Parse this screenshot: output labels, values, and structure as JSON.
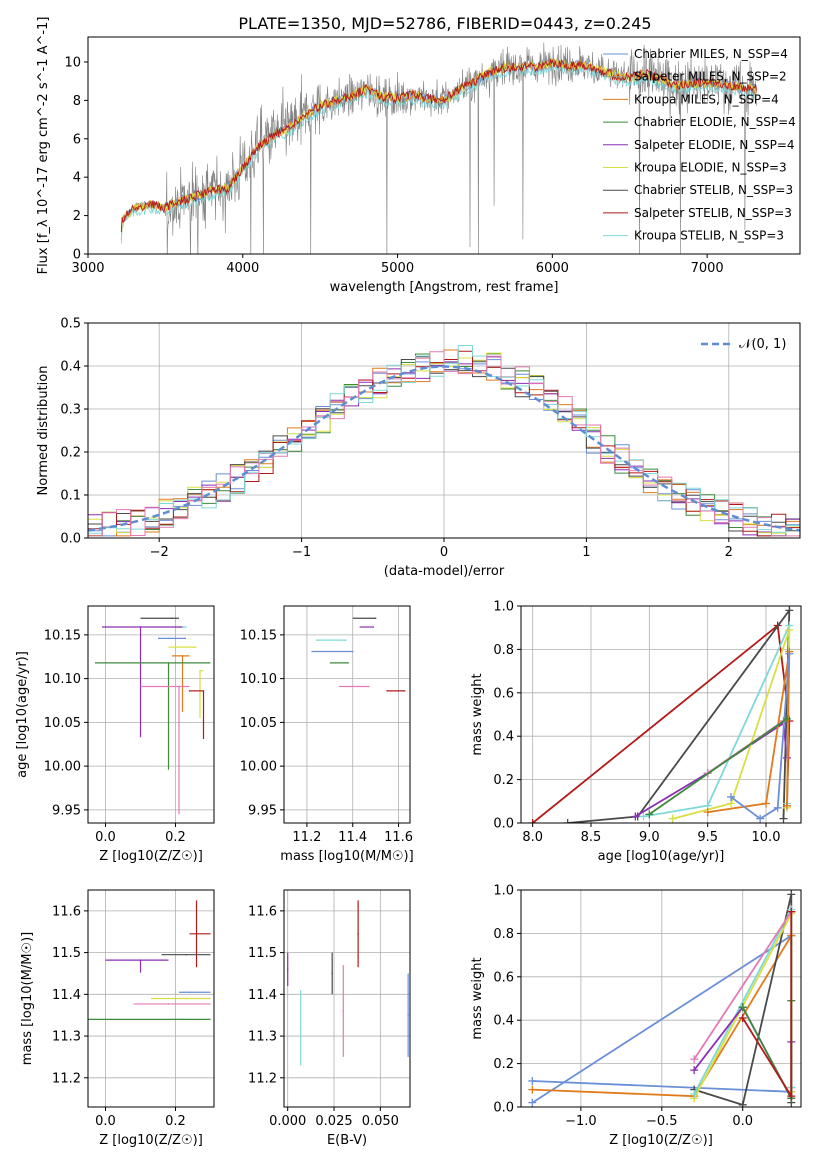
{
  "figure_title": "PLATE=1350, MJD=52786, FIBERID=0443, z=0.245",
  "palette": {
    "chabrier_miles": "#6a8fd8",
    "salpeter_miles": "#9a9a9a",
    "kroupa_miles": "#e07b1c",
    "chabrier_elodie": "#3d8a3d",
    "salpeter_elodie": "#8b2fb5",
    "kroupa_elodie": "#d8df42",
    "chabrier_stelib": "#4a4a4a",
    "salpeter_stelib": "#b21a1a",
    "kroupa_stelib": "#7fd8d8",
    "pink": "#e37ab3",
    "data": "#808080",
    "normal": "#5f8dd3"
  },
  "chart_data": [
    {
      "id": "spectrum",
      "type": "line",
      "title": "PLATE=1350, MJD=52786, FIBERID=0443, z=0.245",
      "xlabel": "wavelength [Angstrom, rest frame]",
      "ylabel": "Flux [f_λ 10^-17 erg cm^-2 s^-1 A^-1]",
      "xlim": [
        3000,
        7600
      ],
      "ylim": [
        0,
        11.3
      ],
      "xticks": [
        "3000",
        "4000",
        "5000",
        "6000",
        "7000"
      ],
      "yticks": [
        "0",
        "2",
        "4",
        "6",
        "8",
        "10"
      ],
      "legend_position": "right",
      "series": [
        {
          "name": "Chabrier MILES, N_SSP=4",
          "color_key": "chabrier_miles"
        },
        {
          "name": "Salpeter MILES, N_SSP=2",
          "color_key": "salpeter_miles"
        },
        {
          "name": "Kroupa MILES, N_SSP=4",
          "color_key": "kroupa_miles"
        },
        {
          "name": "Chabrier ELODIE, N_SSP=4",
          "color_key": "chabrier_elodie"
        },
        {
          "name": "Salpeter ELODIE, N_SSP=4",
          "color_key": "salpeter_elodie"
        },
        {
          "name": "Kroupa ELODIE, N_SSP=3",
          "color_key": "kroupa_elodie"
        },
        {
          "name": "Chabrier STELIB, N_SSP=3",
          "color_key": "chabrier_stelib"
        },
        {
          "name": "Salpeter STELIB, N_SSP=3",
          "color_key": "salpeter_stelib"
        },
        {
          "name": "Kroupa STELIB, N_SSP=3",
          "color_key": "kroupa_stelib"
        }
      ],
      "continuum": [
        [
          3210,
          0
        ],
        [
          3220,
          1.8
        ],
        [
          3300,
          2.4
        ],
        [
          3400,
          2.6
        ],
        [
          3500,
          2.4
        ],
        [
          3600,
          2.8
        ],
        [
          3700,
          3.0
        ],
        [
          3800,
          3.3
        ],
        [
          3900,
          3.4
        ],
        [
          4000,
          4.5
        ],
        [
          4100,
          5.6
        ],
        [
          4200,
          6.2
        ],
        [
          4300,
          6.6
        ],
        [
          4400,
          7.2
        ],
        [
          4500,
          7.7
        ],
        [
          4600,
          8.0
        ],
        [
          4700,
          8.2
        ],
        [
          4800,
          8.6
        ],
        [
          4900,
          8.2
        ],
        [
          5000,
          8.1
        ],
        [
          5100,
          8.3
        ],
        [
          5200,
          8.1
        ],
        [
          5300,
          8.0
        ],
        [
          5400,
          8.6
        ],
        [
          5500,
          9.0
        ],
        [
          5600,
          9.5
        ],
        [
          5700,
          9.7
        ],
        [
          5800,
          9.8
        ],
        [
          5900,
          9.7
        ],
        [
          6000,
          10.0
        ],
        [
          6100,
          9.8
        ],
        [
          6200,
          9.9
        ],
        [
          6300,
          9.6
        ],
        [
          6400,
          9.3
        ],
        [
          6500,
          9.2
        ],
        [
          6600,
          9.4
        ],
        [
          6700,
          9.1
        ],
        [
          6800,
          8.8
        ],
        [
          6900,
          8.9
        ],
        [
          7000,
          8.9
        ],
        [
          7100,
          8.9
        ],
        [
          7200,
          8.7
        ],
        [
          7300,
          8.6
        ]
      ]
    },
    {
      "id": "residuals",
      "type": "area",
      "xlabel": "(data-model)/error",
      "ylabel": "Normed distribution",
      "xlim": [
        -2.5,
        2.5
      ],
      "ylim": [
        0,
        0.5
      ],
      "xticks": [
        "−2",
        "−1",
        "0",
        "1",
        "2"
      ],
      "yticks": [
        "0.0",
        "0.1",
        "0.2",
        "0.3",
        "0.4",
        "0.5"
      ],
      "legend": "𝒩(0, 1)",
      "legend_position": "top-right",
      "bin_width": 0.1,
      "histogram_centers": [
        -2.45,
        -2.35,
        -2.25,
        -2.15,
        -2.05,
        -1.95,
        -1.85,
        -1.75,
        -1.65,
        -1.55,
        -1.45,
        -1.35,
        -1.25,
        -1.15,
        -1.05,
        -0.95,
        -0.85,
        -0.75,
        -0.65,
        -0.55,
        -0.45,
        -0.35,
        -0.25,
        -0.15,
        -0.05,
        0.05,
        0.15,
        0.25,
        0.35,
        0.45,
        0.55,
        0.65,
        0.75,
        0.85,
        0.95,
        1.05,
        1.15,
        1.25,
        1.35,
        1.45,
        1.55,
        1.65,
        1.75,
        1.85,
        1.95,
        2.05,
        2.15,
        2.25,
        2.35,
        2.45
      ]
    },
    {
      "id": "age_vs_Z",
      "type": "scatter",
      "xlabel": "Z [log10(Z/Z☉)]",
      "ylabel": "age  [log10(age/yr)]",
      "xlim": [
        -0.05,
        0.31
      ],
      "ylim": [
        9.935,
        10.183
      ],
      "xticks": [
        "0.0",
        "0.2"
      ],
      "yticks": [
        "9.95",
        "10.00",
        "10.05",
        "10.10",
        "10.15"
      ],
      "points": [
        {
          "x": 0.19,
          "y": 10.169,
          "xerr": [
            0.09,
            0.02
          ],
          "yerr": [
            0.0,
            0.0
          ],
          "color_key": "chabrier_stelib"
        },
        {
          "x": 0.23,
          "y": 10.159,
          "xerr": [
            0.04,
            0.0
          ],
          "yerr": [
            0.0,
            0.0
          ],
          "color_key": "kroupa_stelib"
        },
        {
          "x": 0.18,
          "y": 10.146,
          "xerr": [
            0.03,
            0.05
          ],
          "yerr": [
            0.0,
            0.0
          ],
          "color_key": "chabrier_miles"
        },
        {
          "x": 0.1,
          "y": 10.159,
          "xerr": [
            0.11,
            0.12
          ],
          "yerr": [
            0.126,
            0.0
          ],
          "color_key": "salpeter_elodie"
        },
        {
          "x": 0.2,
          "y": 10.136,
          "xerr": [
            0.02,
            0.06
          ],
          "yerr": [
            0.0,
            0.0
          ],
          "color_key": "kroupa_elodie"
        },
        {
          "x": 0.22,
          "y": 10.126,
          "xerr": [
            0.03,
            0.02
          ],
          "yerr": [
            0.064,
            0.0
          ],
          "color_key": "kroupa_miles"
        },
        {
          "x": 0.18,
          "y": 10.118,
          "xerr": [
            0.21,
            0.12
          ],
          "yerr": [
            0.122,
            0.0
          ],
          "color_key": "chabrier_elodie"
        },
        {
          "x": 0.27,
          "y": 10.109,
          "xerr": [
            0.0,
            0.01
          ],
          "yerr": [
            0.054,
            0.0
          ],
          "color_key": "kroupa_elodie"
        },
        {
          "x": 0.21,
          "y": 10.091,
          "xerr": [
            0.11,
            0.03
          ],
          "yerr": [
            0.146,
            0.0
          ],
          "color_key": "pink"
        },
        {
          "x": 0.24,
          "y": 10.086,
          "xerr": [
            0.0,
            0.04
          ],
          "yerr": [
            0.0,
            0.0
          ],
          "color_key": "salpeter_stelib"
        },
        {
          "x": 0.28,
          "y": 10.086,
          "xerr": [
            0.0,
            0.0
          ],
          "yerr": [
            0.055,
            0.0
          ],
          "color_key": "salpeter_stelib"
        }
      ]
    },
    {
      "id": "age_vs_mass",
      "type": "scatter",
      "xlabel": "mass [log10(M/M☉)]",
      "ylabel": "",
      "xlim": [
        11.1,
        11.65
      ],
      "ylim": [
        9.935,
        10.183
      ],
      "xticks": [
        "11.2",
        "11.4",
        "11.6"
      ],
      "yticks": [
        "9.95",
        "10.00",
        "10.05",
        "10.10",
        "10.15"
      ],
      "points": [
        {
          "x": 11.5,
          "y": 10.169,
          "xerr": [
            0.1,
            0.0
          ],
          "yerr": [
            0.0,
            0.0
          ],
          "color_key": "chabrier_stelib"
        },
        {
          "x": 11.49,
          "y": 10.159,
          "xerr": [
            0.06,
            0.0
          ],
          "yerr": [
            0.0,
            0.0
          ],
          "color_key": "salpeter_elodie"
        },
        {
          "x": 11.37,
          "y": 10.144,
          "xerr": [
            0.13,
            0.0
          ],
          "yerr": [
            0.0,
            0.0
          ],
          "color_key": "kroupa_stelib"
        },
        {
          "x": 11.4,
          "y": 10.131,
          "xerr": [
            0.18,
            0.0
          ],
          "yerr": [
            0.0,
            0.0
          ],
          "color_key": "chabrier_miles"
        },
        {
          "x": 11.38,
          "y": 10.118,
          "xerr": [
            0.08,
            0.0
          ],
          "yerr": [
            0.0,
            0.0
          ],
          "color_key": "chabrier_elodie"
        },
        {
          "x": 11.47,
          "y": 10.091,
          "xerr": [
            0.13,
            0.0
          ],
          "yerr": [
            0.0,
            0.0
          ],
          "color_key": "pink"
        },
        {
          "x": 11.55,
          "y": 10.086,
          "xerr": [
            0.0,
            0.08
          ],
          "yerr": [
            0.0,
            0.0
          ],
          "color_key": "salpeter_stelib"
        }
      ]
    },
    {
      "id": "weight_vs_age",
      "type": "line",
      "xlabel": "age  [log10(age/yr)]",
      "ylabel": "mass weight",
      "xlim": [
        7.9,
        10.3
      ],
      "ylim": [
        0,
        1
      ],
      "xticks": [
        "8.0",
        "8.5",
        "9.0",
        "9.5",
        "10.0"
      ],
      "yticks": [
        "0.0",
        "0.2",
        "0.4",
        "0.6",
        "0.8",
        "1.0"
      ],
      "series": [
        {
          "color_key": "salpeter_stelib",
          "x": [
            8.0,
            10.1,
            10.2,
            10.18
          ],
          "y": [
            0.0,
            0.91,
            0.47,
            0.08
          ]
        },
        {
          "color_key": "chabrier_stelib",
          "x": [
            8.3,
            8.9,
            10.2,
            10.15
          ],
          "y": [
            0.0,
            0.03,
            0.98,
            0.02
          ]
        },
        {
          "color_key": "salpeter_elodie",
          "x": [
            8.88,
            9.5,
            10.15,
            10.18
          ],
          "y": [
            0.03,
            0.23,
            0.46,
            0.3
          ]
        },
        {
          "color_key": "kroupa_stelib",
          "x": [
            8.95,
            9.5,
            10.2,
            10.18
          ],
          "y": [
            0.03,
            0.08,
            0.91,
            0.09
          ]
        },
        {
          "color_key": "kroupa_elodie",
          "x": [
            9.2,
            9.7,
            10.2,
            10.18
          ],
          "y": [
            0.02,
            0.09,
            0.89,
            0.07
          ]
        },
        {
          "color_key": "kroupa_miles",
          "x": [
            9.5,
            10.0,
            10.2,
            10.18
          ],
          "y": [
            0.05,
            0.09,
            0.79,
            0.08
          ]
        },
        {
          "color_key": "chabrier_miles",
          "x": [
            9.7,
            9.95,
            10.1,
            10.2
          ],
          "y": [
            0.12,
            0.02,
            0.07,
            0.78
          ]
        },
        {
          "color_key": "pink",
          "x": [
            9.5,
            10.15
          ],
          "y": [
            0.23,
            0.47
          ]
        },
        {
          "color_key": "chabrier_elodie",
          "x": [
            9.0,
            10.18
          ],
          "y": [
            0.04,
            0.48
          ]
        }
      ]
    },
    {
      "id": "mass_vs_Z",
      "type": "scatter",
      "xlabel": "Z [log10(Z/Z☉)]",
      "ylabel": "mass [log10(M/M☉)]",
      "xlim": [
        -0.05,
        0.31
      ],
      "ylim": [
        11.13,
        11.65
      ],
      "xticks": [
        "0.0",
        "0.2"
      ],
      "yticks": [
        "11.2",
        "11.3",
        "11.4",
        "11.5",
        "11.6"
      ],
      "points": [
        {
          "x": 0.26,
          "y": 11.545,
          "xerr": [
            0.02,
            0.04
          ],
          "yerr": [
            0.08,
            0.08
          ],
          "color_key": "salpeter_stelib"
        },
        {
          "x": 0.23,
          "y": 11.495,
          "xerr": [
            0.07,
            0.07
          ],
          "yerr": [
            0.0,
            0.0
          ],
          "color_key": "chabrier_stelib"
        },
        {
          "x": 0.1,
          "y": 11.482,
          "xerr": [
            0.1,
            0.08
          ],
          "yerr": [
            0.03,
            0.0
          ],
          "color_key": "salpeter_elodie"
        },
        {
          "x": 0.24,
          "y": 11.405,
          "xerr": [
            0.03,
            0.06
          ],
          "yerr": [
            0.0,
            0.0
          ],
          "color_key": "chabrier_miles"
        },
        {
          "x": 0.23,
          "y": 11.39,
          "xerr": [
            0.1,
            0.07
          ],
          "yerr": [
            0.0,
            0.0
          ],
          "color_key": "kroupa_elodie"
        },
        {
          "x": 0.18,
          "y": 11.377,
          "xerr": [
            0.1,
            0.12
          ],
          "yerr": [
            0.0,
            0.0
          ],
          "color_key": "pink"
        },
        {
          "x": 0.22,
          "y": 11.34,
          "xerr": [
            0.27,
            0.08
          ],
          "yerr": [
            0.0,
            0.0
          ],
          "color_key": "chabrier_elodie"
        }
      ]
    },
    {
      "id": "mass_vs_ebv",
      "type": "scatter",
      "xlabel": "E(B-V)",
      "ylabel": "",
      "xlim": [
        -0.002,
        0.066
      ],
      "ylim": [
        11.13,
        11.65
      ],
      "xticks": [
        "0.000",
        "0.025",
        "0.050"
      ],
      "yticks": [
        "11.2",
        "11.3",
        "11.4",
        "11.5",
        "11.6"
      ],
      "points": [
        {
          "x": 0.038,
          "y": 11.545,
          "xerr": [
            0.0,
            0.0
          ],
          "yerr": [
            0.08,
            0.08
          ],
          "color_key": "salpeter_stelib"
        },
        {
          "x": 0.024,
          "y": 11.45,
          "xerr": [
            0.0,
            0.0
          ],
          "yerr": [
            0.05,
            0.05
          ],
          "color_key": "chabrier_stelib"
        },
        {
          "x": 0.03,
          "y": 11.36,
          "xerr": [
            0.0,
            0.0
          ],
          "yerr": [
            0.11,
            0.11
          ],
          "color_key": "pink"
        },
        {
          "x": 0.007,
          "y": 11.32,
          "xerr": [
            0.0,
            0.0
          ],
          "yerr": [
            0.09,
            0.09
          ],
          "color_key": "kroupa_stelib"
        },
        {
          "x": 0.065,
          "y": 11.35,
          "xerr": [
            0.0,
            0.0
          ],
          "yerr": [
            0.1,
            0.1
          ],
          "color_key": "chabrier_miles"
        },
        {
          "x": 0.0,
          "y": 11.46,
          "xerr": [
            0.0,
            0.0
          ],
          "yerr": [
            0.04,
            0.04
          ],
          "color_key": "salpeter_elodie"
        }
      ]
    },
    {
      "id": "weight_vs_Z",
      "type": "line",
      "xlabel": "Z [log10(Z/Z☉)]",
      "ylabel": "mass weight",
      "xlim": [
        -1.37,
        0.36
      ],
      "ylim": [
        0,
        1
      ],
      "xticks": [
        "−1.0",
        "−0.5",
        "0.0"
      ],
      "yticks": [
        "0.0",
        "0.2",
        "0.4",
        "0.6",
        "0.8",
        "1.0"
      ],
      "series": [
        {
          "color_key": "chabrier_miles",
          "x": [
            -1.3,
            0.3,
            0.3,
            -1.3
          ],
          "y": [
            0.02,
            0.79,
            0.07,
            0.12
          ]
        },
        {
          "color_key": "kroupa_miles",
          "x": [
            -1.3,
            -0.3,
            0.3,
            0.3
          ],
          "y": [
            0.08,
            0.05,
            0.79,
            0.09
          ]
        },
        {
          "color_key": "chabrier_stelib",
          "x": [
            -0.3,
            0.0,
            0.3,
            0.3
          ],
          "y": [
            0.08,
            0.01,
            0.98,
            0.02
          ]
        },
        {
          "color_key": "kroupa_elodie",
          "x": [
            -0.3,
            0.3,
            0.3
          ],
          "y": [
            0.04,
            0.89,
            0.07
          ]
        },
        {
          "color_key": "kroupa_stelib",
          "x": [
            -0.3,
            0.3,
            0.3
          ],
          "y": [
            0.06,
            0.91,
            0.09
          ]
        },
        {
          "color_key": "salpeter_elodie",
          "x": [
            -0.3,
            0.0,
            0.3,
            0.3
          ],
          "y": [
            0.17,
            0.46,
            0.04,
            0.3
          ]
        },
        {
          "color_key": "pink",
          "x": [
            -0.3,
            0.3
          ],
          "y": [
            0.22,
            0.9
          ]
        },
        {
          "color_key": "chabrier_elodie",
          "x": [
            0.0,
            0.3,
            0.3
          ],
          "y": [
            0.46,
            0.04,
            0.49
          ]
        },
        {
          "color_key": "salpeter_stelib",
          "x": [
            0.0,
            0.3,
            0.3
          ],
          "y": [
            0.41,
            0.05,
            0.9
          ]
        }
      ]
    }
  ]
}
